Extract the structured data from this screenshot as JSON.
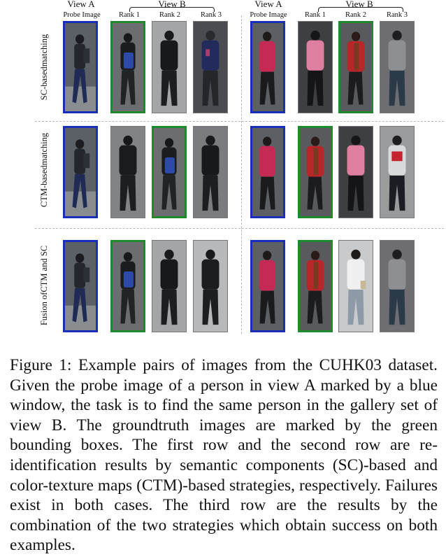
{
  "figure": {
    "groups": [
      {
        "view_a": "View A",
        "view_b": "View B",
        "probe_label": "Probe Image",
        "ranks": [
          "Rank 1",
          "Rank 2",
          "Rank 3"
        ]
      },
      {
        "view_a": "View A",
        "view_b": "View B",
        "probe_label": "Probe Image",
        "ranks": [
          "Rank 1",
          "Rank 2",
          "Rank 3"
        ]
      }
    ],
    "rows": [
      {
        "label_line1": "SC-based",
        "label_line2": "matching"
      },
      {
        "label_line1": "CTM-based",
        "label_line2": "matching"
      },
      {
        "label_line1": "Fusion of",
        "label_line2": "CTM and SC"
      }
    ],
    "colors": {
      "probe_frame": "#1a2fb8",
      "groundtruth_frame": "#1e8a2a"
    }
  },
  "caption": "Figure 1: Example pairs of images from the CUHK03 dataset. Given the probe image of a person in view A marked by a blue window, the task is to find the same person in the gallery set of view B. The groundtruth images are marked by the green bounding boxes. The first row and the second row are re-identification results by semantic components (SC)-based and color-texture maps (CTM)-based strategies, respectively. Failures exist in both cases. The third row are the results by the combination of the two strategies which obtain success on both examples."
}
